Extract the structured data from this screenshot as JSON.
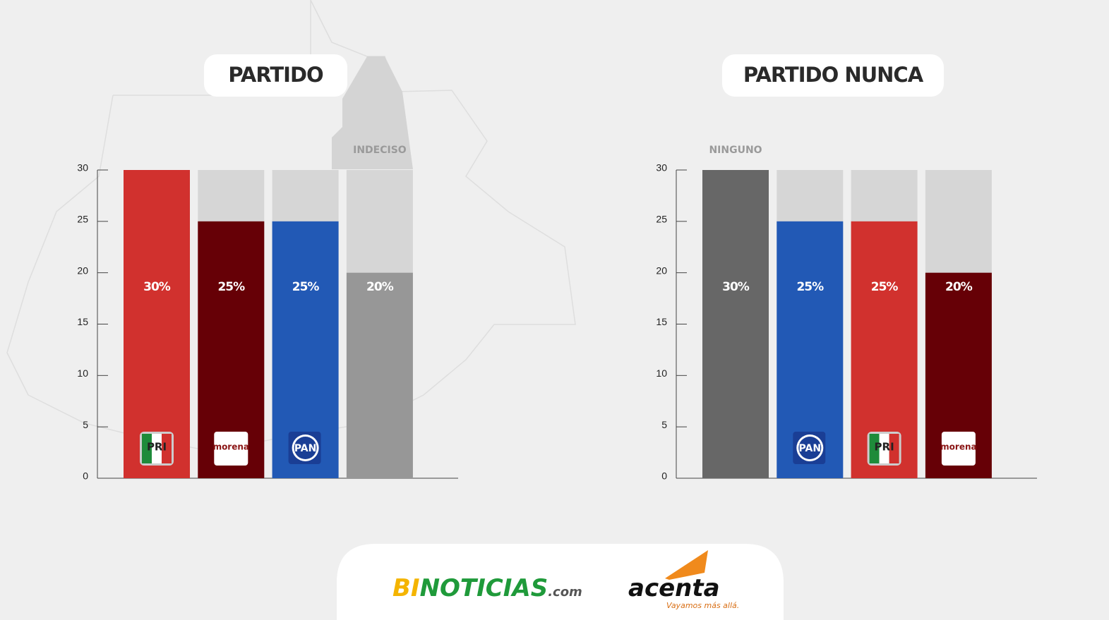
{
  "chart_data": [
    {
      "type": "bar",
      "title": "PARTIDO",
      "categories": [
        "PRI",
        "morena",
        "PAN",
        "INDECISO"
      ],
      "values": [
        30,
        25,
        25,
        20
      ],
      "value_labels": [
        "30%",
        "25%",
        "25%",
        "20%"
      ],
      "colors": [
        "#d1312e",
        "#660006",
        "#2259b5",
        "#979797"
      ],
      "ylim": [
        0,
        30
      ],
      "yticks": [
        0,
        5,
        10,
        15,
        20,
        25,
        30
      ]
    },
    {
      "type": "bar",
      "title": "PARTIDO NUNCA",
      "categories": [
        "NINGUNO",
        "PAN",
        "PRI",
        "morena"
      ],
      "values": [
        30,
        25,
        25,
        20
      ],
      "value_labels": [
        "30%",
        "25%",
        "25%",
        "20%"
      ],
      "colors": [
        "#676767",
        "#2259b5",
        "#d1312e",
        "#660006"
      ],
      "ylim": [
        0,
        30
      ],
      "yticks": [
        0,
        5,
        10,
        15,
        20,
        25,
        30
      ]
    }
  ],
  "footer": {
    "brand": [
      "BI",
      "NOTICIAS",
      ".com"
    ],
    "partner": "acenta",
    "slogan": "Vayamos más allá."
  }
}
